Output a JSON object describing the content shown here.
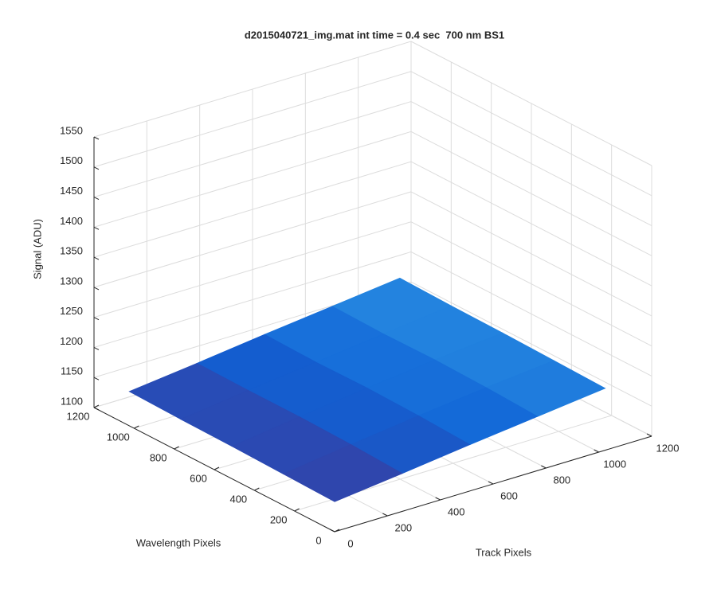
{
  "chart_data": {
    "type": "surface",
    "title": "d2015040721_img.mat int time = 0.4 sec  700 nm BS1",
    "x_label": "Track Pixels",
    "y_label": "Wavelength Pixels",
    "z_label": "Signal (ADU)",
    "x": [
      0,
      256,
      512,
      768,
      1024
    ],
    "y": [
      0,
      256,
      512,
      768,
      1024
    ],
    "z": [
      [
        1150,
        1163,
        1177,
        1190,
        1203
      ],
      [
        1152,
        1167,
        1181,
        1194,
        1205
      ],
      [
        1154,
        1169,
        1183,
        1196,
        1207
      ],
      [
        1155,
        1169,
        1182,
        1195,
        1208
      ],
      [
        1157,
        1170,
        1184,
        1197,
        1210
      ]
    ],
    "xlim": [
      0,
      1200
    ],
    "ylim": [
      0,
      1200
    ],
    "zlim": [
      1100,
      1550
    ],
    "xticks": [
      0,
      200,
      400,
      600,
      800,
      1000,
      1200
    ],
    "yticks": [
      0,
      200,
      400,
      600,
      800,
      1000,
      1200
    ],
    "zticks": [
      1100,
      1150,
      1200,
      1250,
      1300,
      1350,
      1400,
      1450,
      1500,
      1550
    ],
    "colormap": [
      "#3a3c9e",
      "#0f62d6",
      "#2a8ee2"
    ],
    "grid": true
  }
}
